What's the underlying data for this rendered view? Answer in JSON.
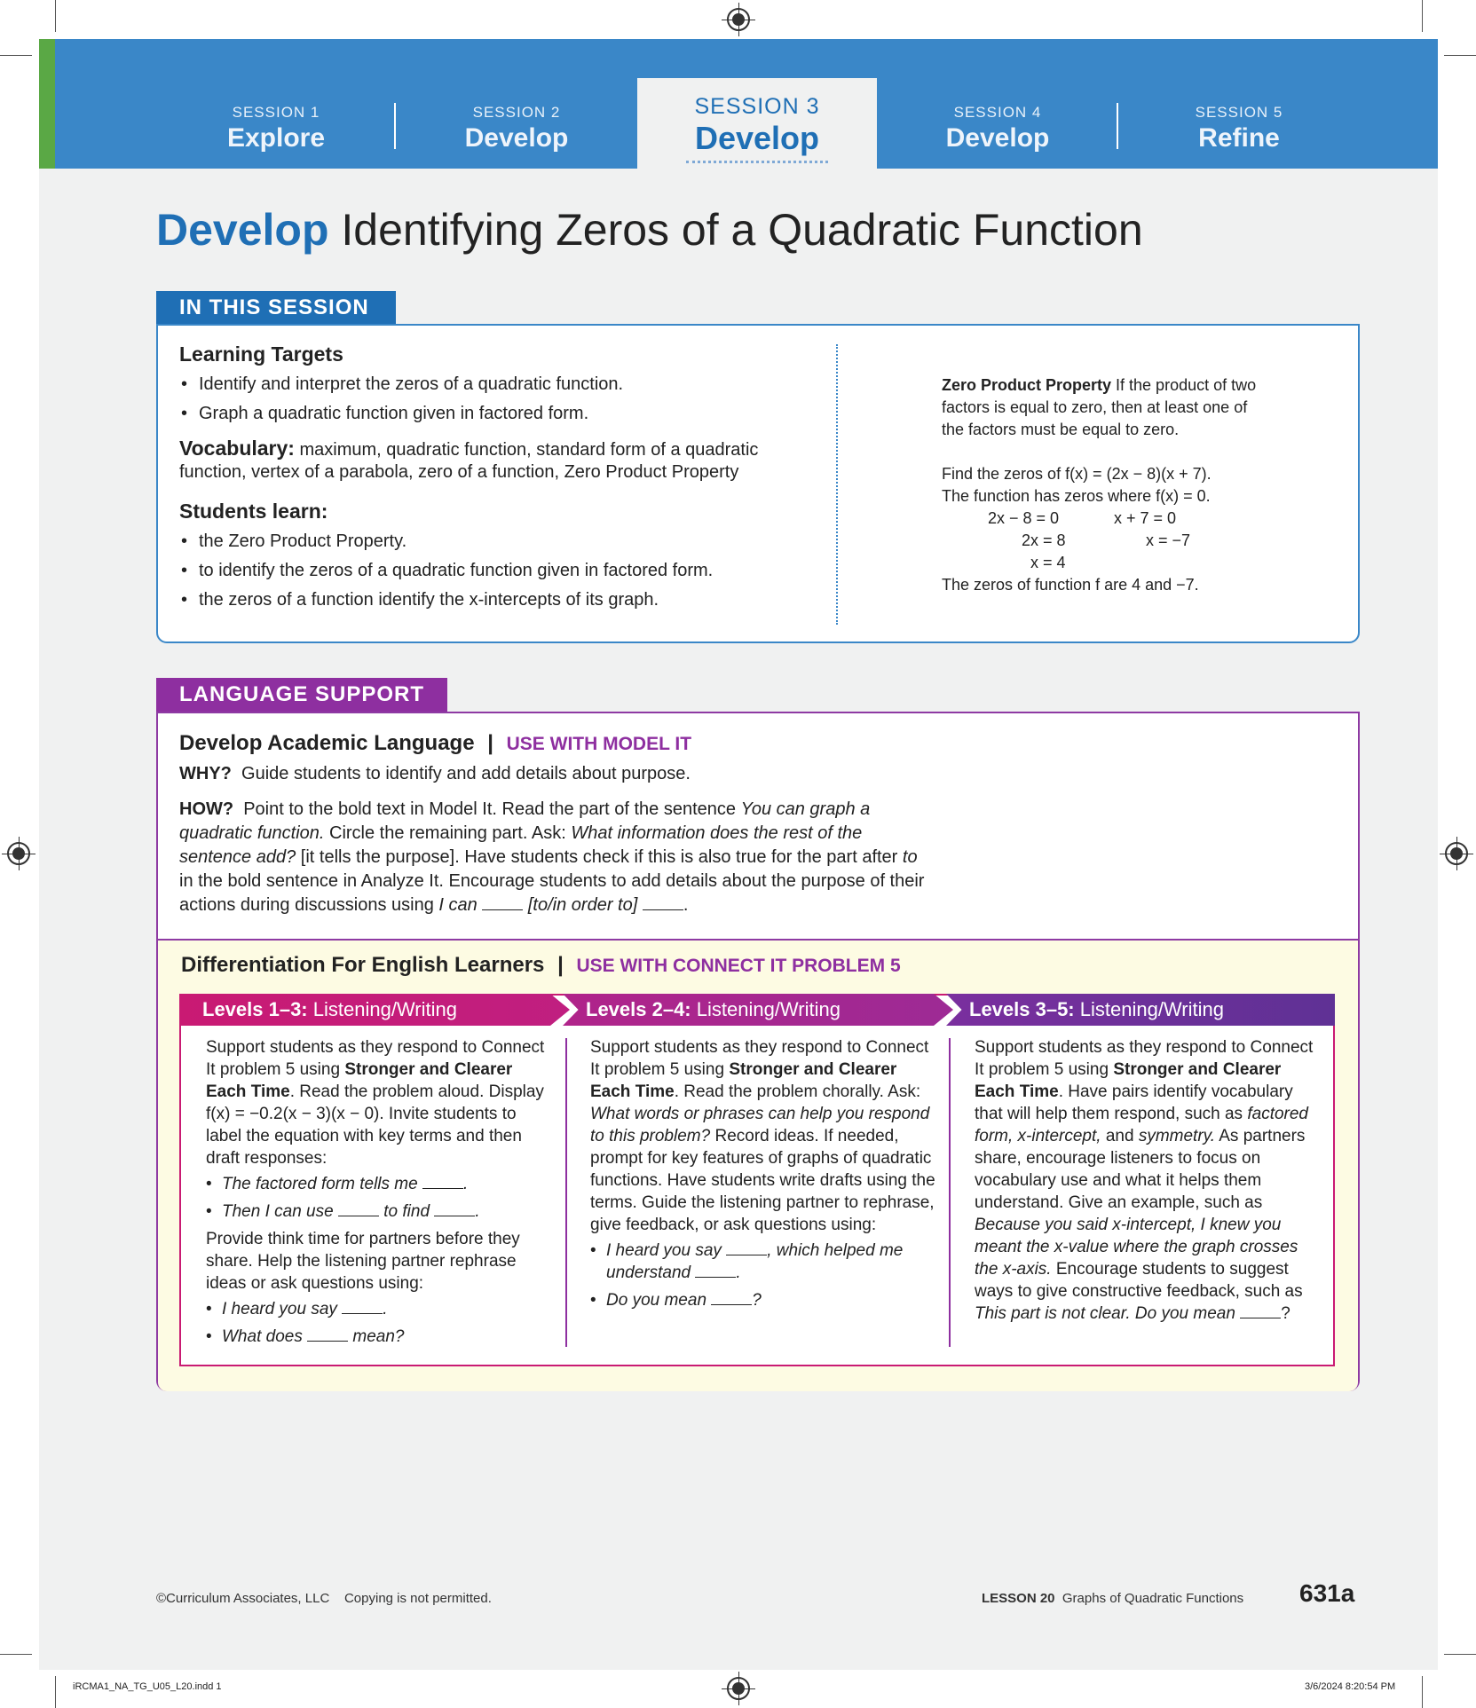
{
  "tabs": [
    {
      "session": "SESSION 1",
      "name": "Explore"
    },
    {
      "session": "SESSION 2",
      "name": "Develop"
    },
    {
      "session": "SESSION 3",
      "name": "Develop"
    },
    {
      "session": "SESSION 4",
      "name": "Develop"
    },
    {
      "session": "SESSION 5",
      "name": "Refine"
    }
  ],
  "title": {
    "prefix": "Develop",
    "main": " Identifying Zeros of a Quadratic Function"
  },
  "in_this_session": {
    "label": "IN THIS SESSION",
    "learning_targets_heading": "Learning Targets",
    "learning_targets": [
      "Identify and interpret the zeros of a quadratic function.",
      "Graph a quadratic function given in factored form."
    ],
    "vocab_label": "Vocabulary:",
    "vocab_text": " maximum, quadratic function, standard form of a quadratic function, vertex of a parabola, zero of a function, Zero Product Property",
    "students_learn_heading": "Students learn:",
    "students_learn": [
      "the Zero Product Property.",
      "to identify the zeros of a quadratic function given in factored form.",
      "the zeros of a function identify the x-intercepts of its graph."
    ],
    "zpp_term": "Zero Product Property",
    "zpp_def": " If the product of two factors is equal to zero, then at least one of the factors must be equal to zero.",
    "example_line1": "Find the zeros of f(x) = (2x − 8)(x + 7).",
    "example_line2": "The function has zeros where f(x) = 0.",
    "eq_left": [
      "2x − 8 = 0",
      "2x = 8",
      "x = 4"
    ],
    "eq_right": [
      "x + 7 = 0",
      "x = −7"
    ],
    "example_conclusion": "The zeros of function f are 4 and −7."
  },
  "language_support": {
    "label": "LANGUAGE SUPPORT",
    "heading": "Develop Academic Language",
    "heading_tag": "USE WITH MODEL IT",
    "why_label": "WHY?",
    "why_text": "Guide students to identify and add details about purpose.",
    "how_label": "HOW?",
    "how_text_1": "Point to the bold text in Model It. Read the part of the sentence ",
    "how_italic_1": "You can graph a quadratic function.",
    "how_text_2": " Circle the remaining part. Ask: ",
    "how_italic_2": "What information does the rest of the sentence add?",
    "how_text_3": " [it tells the purpose]. Have students check if this is also true for the part after ",
    "how_italic_3": "to",
    "how_text_4": " in the bold sentence in Analyze It. Encourage students to add details about the purpose of their actions during discussions using ",
    "how_italic_4": "I can",
    "how_italic_5": "[to/in order to]",
    "diff_heading": "Differentiation For English Learners",
    "diff_tag": "USE WITH CONNECT IT PROBLEM 5",
    "levels": [
      {
        "bold": "Levels 1–3:",
        "rest": " Listening/Writing"
      },
      {
        "bold": "Levels 2–4:",
        "rest": " Listening/Writing"
      },
      {
        "bold": "Levels 3–5:",
        "rest": " Listening/Writing"
      }
    ],
    "col1": {
      "p1a": "Support students as they respond to Connect It problem 5 using ",
      "p1b": "Stronger and Clearer Each Time",
      "p1c": ". Read the problem aloud. Display f(x) = −0.2(x − 3)(x − 0). Invite students to label the equation with key terms and then draft responses:",
      "b1": "The factored form tells me",
      "b2a": "Then I can use",
      "b2b": "to find",
      "p2": "Provide think time for partners before they share. Help the listening partner rephrase ideas or ask questions using:",
      "b3": "I heard you say",
      "b4a": "What does",
      "b4b": "mean?"
    },
    "col2": {
      "p1a": "Support students as they respond to Connect It problem 5 using ",
      "p1b": "Stronger and Clearer Each Time",
      "p1c": ". Read the problem chorally. Ask: ",
      "p1d": "What words or phrases can help you respond to this problem?",
      "p1e": " Record ideas. If needed, prompt for key features of graphs of quadratic functions. Have students write drafts using the terms. Guide the listening partner to rephrase, give feedback, or ask questions using:",
      "b1a": "I heard you say",
      "b1b": ", which helped me understand",
      "b2": "Do you mean"
    },
    "col3": {
      "p1a": "Support students as they respond to Connect It problem 5 using ",
      "p1b": "Stronger and Clearer Each Time",
      "p1c": ". Have pairs identify vocabulary that will help them respond, such as ",
      "p1d": "factored form, x-intercept,",
      "p1e": " and ",
      "p1f": "symmetry.",
      "p1g": " As partners share, encourage listeners to focus on vocabulary use and what it helps them understand. Give an example, such as ",
      "p1h": "Because you said x-intercept, I knew you meant the x-value where the graph crosses the x-axis.",
      "p1i": " Encourage students to suggest ways to give constructive feedback, such as ",
      "p1j": "This part is not clear. Do you mean"
    }
  },
  "footer": {
    "copyright": "©Curriculum Associates, LLC",
    "copying": "Copying is not permitted.",
    "lesson_label": "LESSON 20",
    "lesson_title": "Graphs of Quadratic Functions",
    "page_number": "631a"
  },
  "slug": {
    "file": "iRCMA1_NA_TG_U05_L20.indd   1",
    "date": "3/6/2024   8:20:54 PM"
  },
  "colors": {
    "blue": "#3a87c8",
    "dark_blue": "#1f6fb5",
    "purple": "#8e2fa0",
    "magenta": "#c91a73",
    "green": "#5aa845"
  }
}
